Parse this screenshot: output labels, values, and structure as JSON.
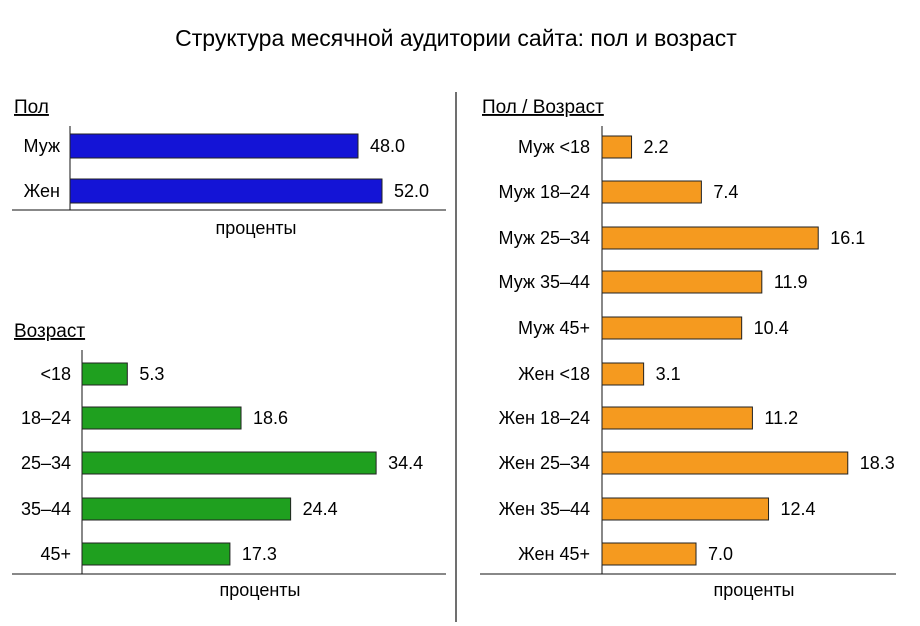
{
  "chart_data": {
    "title": "Структура месячной аудитории сайта: пол и возраст",
    "charts": [
      {
        "type": "bar",
        "orientation": "horizontal",
        "title": "Пол",
        "xlabel": "проценты",
        "color": "#1414d6",
        "xlim": [
          0,
          60
        ],
        "categories": [
          "Муж",
          "Жен"
        ],
        "values": [
          48.0,
          52.0
        ],
        "value_labels": [
          "48.0",
          "52.0"
        ]
      },
      {
        "type": "bar",
        "orientation": "horizontal",
        "title": "Возраст",
        "xlabel": "проценты",
        "color": "#1fa01f",
        "xlim": [
          0,
          40
        ],
        "categories": [
          "<18",
          "18-24",
          "25-34",
          "35-44",
          "45+"
        ],
        "values": [
          5.3,
          18.6,
          34.4,
          24.4,
          17.3
        ],
        "value_labels": [
          "5.3",
          "18.6",
          "34.4",
          "24.4",
          "17.3"
        ]
      },
      {
        "type": "bar",
        "orientation": "horizontal",
        "title": "Пол / Возраст",
        "xlabel": "проценты",
        "color": "#f59a1f",
        "xlim": [
          0,
          21
        ],
        "categories": [
          "Муж <18",
          "Муж 18-24",
          "Муж 25-34",
          "Муж 35-44",
          "Муж 45+",
          "Жен <18",
          "Жен 18-24",
          "Жен 25-34",
          "Жен 35-44",
          "Жен 45+"
        ],
        "values": [
          2.2,
          7.4,
          16.1,
          11.9,
          10.4,
          3.1,
          11.2,
          18.3,
          12.4,
          7.0
        ],
        "value_labels": [
          "2.2",
          "7.4",
          "16.1",
          "11.9",
          "10.4",
          "3.1",
          "11.2",
          "18.3",
          "12.4",
          "7.0"
        ]
      }
    ]
  }
}
